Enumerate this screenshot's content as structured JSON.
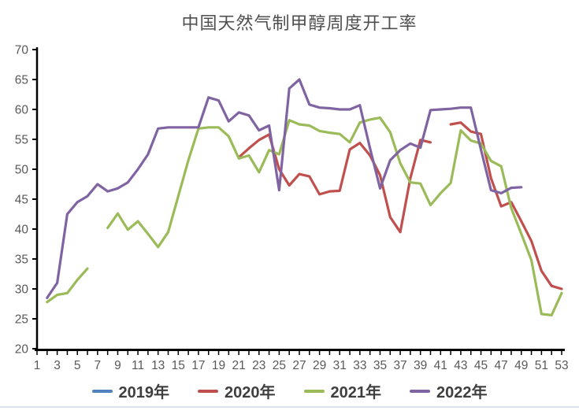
{
  "title": "中国天然气制甲醇周度开工率",
  "colors": {
    "axis": "#000000",
    "tick_label": "#595959",
    "title_text": "#4f4f4f",
    "legend_text": "#3f3f3f",
    "bottom_divider": "#dbe2ea",
    "background": "#ffffff"
  },
  "chart_data": {
    "type": "line",
    "title": "中国天然气制甲醇周度开工率",
    "xlabel": "",
    "ylabel": "",
    "x_unit": "week",
    "x": [
      1,
      2,
      3,
      4,
      5,
      6,
      7,
      8,
      9,
      10,
      11,
      12,
      13,
      14,
      15,
      16,
      17,
      18,
      19,
      20,
      21,
      22,
      23,
      24,
      25,
      26,
      27,
      28,
      29,
      30,
      31,
      32,
      33,
      34,
      35,
      36,
      37,
      38,
      39,
      40,
      41,
      42,
      43,
      44,
      45,
      46,
      47,
      48,
      49,
      50,
      51,
      52,
      53
    ],
    "xticks": [
      1,
      3,
      5,
      7,
      9,
      11,
      13,
      15,
      17,
      19,
      21,
      23,
      25,
      27,
      29,
      31,
      33,
      35,
      37,
      39,
      41,
      43,
      45,
      47,
      49,
      51,
      53
    ],
    "yticks": [
      20,
      25,
      30,
      35,
      40,
      45,
      50,
      55,
      60,
      65,
      70
    ],
    "ylim": [
      20,
      70
    ],
    "grid": false,
    "legend_position": "bottom",
    "note": "2019 series appears in legend but has no visible line in the plot",
    "series": [
      {
        "name": "2019年",
        "color": "#4F81BD",
        "values": [
          null,
          null,
          null,
          null,
          null,
          null,
          null,
          null,
          null,
          null,
          null,
          null,
          null,
          null,
          null,
          null,
          null,
          null,
          null,
          null,
          null,
          null,
          null,
          null,
          null,
          null,
          null,
          null,
          null,
          null,
          null,
          null,
          null,
          null,
          null,
          null,
          null,
          null,
          null,
          null,
          null,
          null,
          null,
          null,
          null,
          null,
          null,
          null,
          null,
          null,
          null,
          null,
          null
        ]
      },
      {
        "name": "2020年",
        "color": "#C0504D",
        "values": [
          null,
          null,
          null,
          null,
          null,
          null,
          null,
          null,
          null,
          null,
          null,
          null,
          null,
          null,
          null,
          null,
          null,
          null,
          null,
          null,
          52,
          53.5,
          54.9,
          55.8,
          50,
          47.3,
          49.2,
          48.8,
          45.8,
          46.3,
          46.4,
          53.3,
          54.4,
          52.3,
          49,
          42,
          39.5,
          48.5,
          54.9,
          54.5,
          null,
          57.5,
          57.8,
          56.3,
          55.9,
          48.5,
          43.8,
          44.5,
          41.3,
          38,
          33,
          30.5,
          30
        ]
      },
      {
        "name": "2021年",
        "color": "#9BBB59",
        "values": [
          null,
          27.8,
          29,
          29.3,
          31.5,
          33.4,
          null,
          40.2,
          42.6,
          39.9,
          41.3,
          39.2,
          37,
          39.5,
          45.5,
          51.5,
          56.8,
          57,
          57,
          55.5,
          51.8,
          52.3,
          49.5,
          53.2,
          52.5,
          58.2,
          57.5,
          57.3,
          56.4,
          56.1,
          55.9,
          54.5,
          57.8,
          58.3,
          58.6,
          56.2,
          51,
          47.8,
          47.6,
          44,
          46,
          47.7,
          56.5,
          54.8,
          54.3,
          51.4,
          50.5,
          43.5,
          39.2,
          34.8,
          25.8,
          25.6,
          29.3
        ]
      },
      {
        "name": "2022年",
        "color": "#8064A2",
        "values": [
          null,
          28.5,
          31,
          42.5,
          44.5,
          45.5,
          47.5,
          46.3,
          46.8,
          47.8,
          50,
          52.5,
          56.8,
          57,
          57,
          57,
          57,
          62,
          61.5,
          58,
          59.5,
          59,
          56.5,
          57.3,
          46.5,
          63.5,
          65,
          60.8,
          60.3,
          60.2,
          60,
          60,
          60.7,
          53.5,
          46.8,
          51.5,
          53.2,
          54.3,
          53.6,
          59.9,
          60,
          60.1,
          60.3,
          60.3,
          53.3,
          46.5,
          46,
          46.9,
          47,
          null,
          null,
          null,
          null
        ]
      }
    ]
  }
}
